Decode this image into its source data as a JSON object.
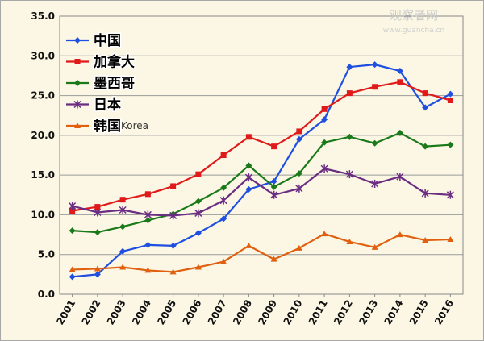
{
  "watermark": {
    "main": "观察者网",
    "sub": "www.guancha.cn"
  },
  "chart_data": {
    "type": "line",
    "title": "",
    "xlabel": "",
    "ylabel": "",
    "ylim": [
      0,
      35
    ],
    "yticks": [
      "0.0",
      "5.0",
      "10.0",
      "15.0",
      "20.0",
      "25.0",
      "30.0",
      "35.0"
    ],
    "grid": "horizontal",
    "legend_placement": "top-left",
    "categories": [
      "2001",
      "2002",
      "2003",
      "2004",
      "2005",
      "2006",
      "2007",
      "2008",
      "2009",
      "2010",
      "2011",
      "2012",
      "2013",
      "2014",
      "2015",
      "2016"
    ],
    "series": [
      {
        "name": "中国",
        "color": "#1f4fe0",
        "marker": "diamond",
        "values": [
          2.2,
          2.5,
          5.4,
          6.2,
          6.1,
          7.7,
          9.5,
          13.2,
          14.2,
          19.5,
          22.0,
          28.6,
          28.9,
          28.1,
          23.5,
          25.2
        ]
      },
      {
        "name": "加拿大",
        "color": "#e01a1a",
        "marker": "square",
        "values": [
          10.5,
          11.0,
          11.9,
          12.6,
          13.6,
          15.1,
          17.5,
          19.8,
          18.6,
          20.5,
          23.3,
          25.3,
          26.1,
          26.7,
          25.3,
          24.4
        ]
      },
      {
        "name": "墨西哥",
        "color": "#1a7a1a",
        "marker": "diamond",
        "values": [
          8.0,
          7.8,
          8.5,
          9.3,
          10.1,
          11.7,
          13.4,
          16.2,
          13.5,
          15.2,
          19.1,
          19.8,
          19.0,
          20.3,
          18.6,
          18.8
        ]
      },
      {
        "name": "日本",
        "color": "#6a2d82",
        "marker": "star",
        "values": [
          11.1,
          10.3,
          10.6,
          10.0,
          9.9,
          10.2,
          11.8,
          14.7,
          12.5,
          13.3,
          15.8,
          15.1,
          13.9,
          14.8,
          12.7,
          12.5
        ]
      },
      {
        "name": "韩国",
        "sub": "Korea",
        "color": "#e06010",
        "marker": "triangle",
        "values": [
          3.1,
          3.2,
          3.4,
          3.0,
          2.8,
          3.4,
          4.1,
          6.1,
          4.4,
          5.8,
          7.6,
          6.6,
          5.9,
          7.5,
          6.8,
          6.9
        ]
      }
    ]
  }
}
